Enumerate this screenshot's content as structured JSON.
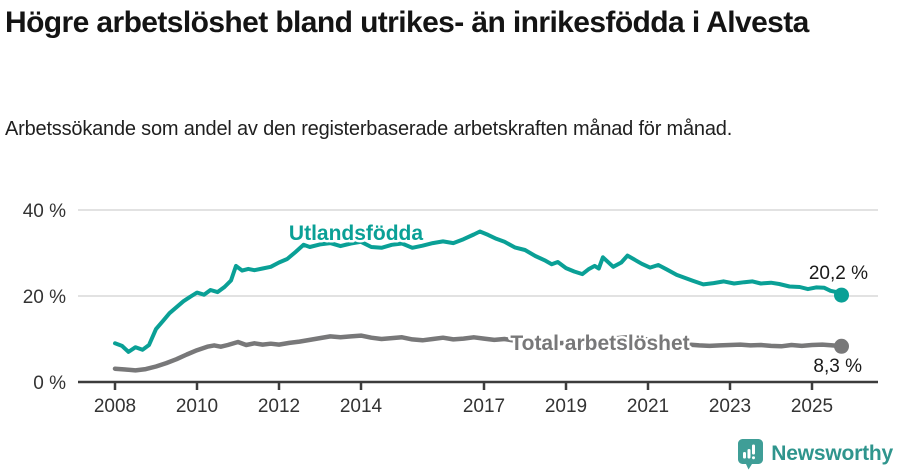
{
  "header": {
    "title": "Högre arbetslöshet bland utrikes- än inrikesfödda i Alvesta",
    "subtitle": "Arbetssökande som andel av den registerbaserade arbetskraften månad för månad."
  },
  "chart_data": {
    "type": "line",
    "title": "Högre arbetslöshet bland utrikes- än inrikesfödda i Alvesta",
    "subtitle": "Arbetssökande som andel av den registerbaserade arbetskraften månad för månad.",
    "xlabel": "",
    "ylabel": "",
    "xlim": [
      2007.3,
      2026.3
    ],
    "ylim": [
      0,
      42
    ],
    "grid": "horizontal",
    "y_ticks": [
      {
        "value": 0,
        "label": "0 %"
      },
      {
        "value": 20,
        "label": "20 %"
      },
      {
        "value": 40,
        "label": "40 %"
      }
    ],
    "x_ticks": [
      {
        "value": 2008,
        "label": "2008"
      },
      {
        "value": 2010,
        "label": "2010"
      },
      {
        "value": 2012,
        "label": "2012"
      },
      {
        "value": 2014,
        "label": "2014"
      },
      {
        "value": 2017,
        "label": "2017"
      },
      {
        "value": 2019,
        "label": "2019"
      },
      {
        "value": 2021,
        "label": "2021"
      },
      {
        "value": 2023,
        "label": "2023"
      },
      {
        "value": 2025,
        "label": "2025"
      }
    ],
    "series": [
      {
        "name": "Utlandsfödda",
        "color": "#0aa096",
        "end_label": "20,2 %",
        "end_value": 20.2,
        "points": [
          [
            2008.0,
            9.0
          ],
          [
            2008.17,
            8.4
          ],
          [
            2008.33,
            7.0
          ],
          [
            2008.5,
            8.1
          ],
          [
            2008.67,
            7.5
          ],
          [
            2008.83,
            8.6
          ],
          [
            2009.0,
            12.3
          ],
          [
            2009.17,
            14.2
          ],
          [
            2009.33,
            16.0
          ],
          [
            2009.5,
            17.4
          ],
          [
            2009.67,
            18.8
          ],
          [
            2009.83,
            19.8
          ],
          [
            2010.0,
            20.8
          ],
          [
            2010.17,
            20.3
          ],
          [
            2010.33,
            21.4
          ],
          [
            2010.5,
            20.9
          ],
          [
            2010.67,
            22.1
          ],
          [
            2010.83,
            23.6
          ],
          [
            2010.95,
            27.0
          ],
          [
            2011.1,
            25.9
          ],
          [
            2011.25,
            26.3
          ],
          [
            2011.4,
            26.0
          ],
          [
            2011.6,
            26.4
          ],
          [
            2011.8,
            26.8
          ],
          [
            2012.0,
            27.8
          ],
          [
            2012.2,
            28.6
          ],
          [
            2012.4,
            30.2
          ],
          [
            2012.6,
            31.9
          ],
          [
            2012.75,
            31.4
          ],
          [
            2013.0,
            32.0
          ],
          [
            2013.25,
            32.3
          ],
          [
            2013.5,
            31.6
          ],
          [
            2013.75,
            32.2
          ],
          [
            2014.0,
            32.6
          ],
          [
            2014.25,
            31.4
          ],
          [
            2014.5,
            31.2
          ],
          [
            2014.75,
            31.9
          ],
          [
            2015.0,
            32.2
          ],
          [
            2015.25,
            31.2
          ],
          [
            2015.5,
            31.7
          ],
          [
            2015.75,
            32.3
          ],
          [
            2016.0,
            32.7
          ],
          [
            2016.25,
            32.3
          ],
          [
            2016.5,
            33.2
          ],
          [
            2016.75,
            34.3
          ],
          [
            2016.9,
            35.0
          ],
          [
            2017.1,
            34.2
          ],
          [
            2017.3,
            33.3
          ],
          [
            2017.5,
            32.6
          ],
          [
            2017.75,
            31.3
          ],
          [
            2018.0,
            30.7
          ],
          [
            2018.25,
            29.3
          ],
          [
            2018.5,
            28.2
          ],
          [
            2018.65,
            27.4
          ],
          [
            2018.8,
            27.9
          ],
          [
            2019.0,
            26.5
          ],
          [
            2019.2,
            25.7
          ],
          [
            2019.4,
            25.1
          ],
          [
            2019.55,
            26.2
          ],
          [
            2019.7,
            27.0
          ],
          [
            2019.8,
            26.4
          ],
          [
            2019.9,
            29.0
          ],
          [
            2020.15,
            26.8
          ],
          [
            2020.35,
            27.8
          ],
          [
            2020.5,
            29.4
          ],
          [
            2020.7,
            28.3
          ],
          [
            2020.85,
            27.5
          ],
          [
            2021.05,
            26.6
          ],
          [
            2021.25,
            27.2
          ],
          [
            2021.45,
            26.2
          ],
          [
            2021.7,
            24.9
          ],
          [
            2021.9,
            24.2
          ],
          [
            2022.1,
            23.5
          ],
          [
            2022.35,
            22.7
          ],
          [
            2022.6,
            23.0
          ],
          [
            2022.85,
            23.4
          ],
          [
            2023.1,
            22.9
          ],
          [
            2023.35,
            23.2
          ],
          [
            2023.55,
            23.4
          ],
          [
            2023.75,
            22.9
          ],
          [
            2024.0,
            23.1
          ],
          [
            2024.2,
            22.8
          ],
          [
            2024.45,
            22.2
          ],
          [
            2024.7,
            22.1
          ],
          [
            2024.9,
            21.6
          ],
          [
            2025.1,
            22.0
          ],
          [
            2025.3,
            21.9
          ],
          [
            2025.45,
            21.2
          ],
          [
            2025.6,
            20.9
          ],
          [
            2025.72,
            20.2
          ]
        ]
      },
      {
        "name": "Total arbetslöshet",
        "color": "#787879",
        "end_label": "8,3 %",
        "end_value": 8.3,
        "points": [
          [
            2008.0,
            3.1
          ],
          [
            2008.25,
            2.9
          ],
          [
            2008.5,
            2.7
          ],
          [
            2008.75,
            3.0
          ],
          [
            2009.0,
            3.6
          ],
          [
            2009.25,
            4.4
          ],
          [
            2009.5,
            5.3
          ],
          [
            2009.75,
            6.4
          ],
          [
            2010.0,
            7.4
          ],
          [
            2010.25,
            8.2
          ],
          [
            2010.42,
            8.5
          ],
          [
            2010.58,
            8.2
          ],
          [
            2010.75,
            8.6
          ],
          [
            2011.0,
            9.3
          ],
          [
            2011.2,
            8.6
          ],
          [
            2011.4,
            9.0
          ],
          [
            2011.6,
            8.7
          ],
          [
            2011.8,
            8.9
          ],
          [
            2012.0,
            8.7
          ],
          [
            2012.25,
            9.1
          ],
          [
            2012.5,
            9.4
          ],
          [
            2012.75,
            9.8
          ],
          [
            2013.0,
            10.2
          ],
          [
            2013.25,
            10.6
          ],
          [
            2013.5,
            10.4
          ],
          [
            2013.75,
            10.6
          ],
          [
            2014.0,
            10.8
          ],
          [
            2014.25,
            10.3
          ],
          [
            2014.5,
            10.0
          ],
          [
            2014.75,
            10.2
          ],
          [
            2015.0,
            10.4
          ],
          [
            2015.25,
            9.9
          ],
          [
            2015.5,
            9.7
          ],
          [
            2015.75,
            10.0
          ],
          [
            2016.0,
            10.3
          ],
          [
            2016.25,
            9.9
          ],
          [
            2016.5,
            10.1
          ],
          [
            2016.75,
            10.4
          ],
          [
            2017.0,
            10.1
          ],
          [
            2017.25,
            9.8
          ],
          [
            2017.5,
            10.0
          ],
          [
            2017.75,
            9.6
          ],
          [
            2018.0,
            9.4
          ],
          [
            2018.25,
            9.1
          ],
          [
            2018.5,
            9.3
          ],
          [
            2018.75,
            9.0
          ],
          [
            2019.0,
            9.1
          ],
          [
            2019.25,
            8.9
          ],
          [
            2019.5,
            9.1
          ],
          [
            2019.75,
            9.4
          ],
          [
            2020.0,
            9.6
          ],
          [
            2020.25,
            10.2
          ],
          [
            2020.5,
            10.4
          ],
          [
            2020.75,
            10.1
          ],
          [
            2021.0,
            9.9
          ],
          [
            2021.25,
            9.6
          ],
          [
            2021.5,
            9.3
          ],
          [
            2021.75,
            9.0
          ],
          [
            2022.0,
            8.7
          ],
          [
            2022.25,
            8.5
          ],
          [
            2022.5,
            8.4
          ],
          [
            2022.75,
            8.5
          ],
          [
            2023.0,
            8.6
          ],
          [
            2023.25,
            8.7
          ],
          [
            2023.5,
            8.5
          ],
          [
            2023.75,
            8.6
          ],
          [
            2024.0,
            8.4
          ],
          [
            2024.25,
            8.3
          ],
          [
            2024.5,
            8.6
          ],
          [
            2024.75,
            8.4
          ],
          [
            2025.0,
            8.6
          ],
          [
            2025.25,
            8.7
          ],
          [
            2025.5,
            8.5
          ],
          [
            2025.72,
            8.3
          ]
        ]
      }
    ]
  },
  "colors": {
    "accent_teal": "#0aa096",
    "series_gray": "#787879",
    "gridline": "#d9d9d9",
    "axis": "#3c3c3c",
    "brand_teal": "#2f958d"
  },
  "branding": {
    "logo_text": "Newsworthy",
    "logo_icon": "bar-chart-speech-bubble-icon"
  }
}
